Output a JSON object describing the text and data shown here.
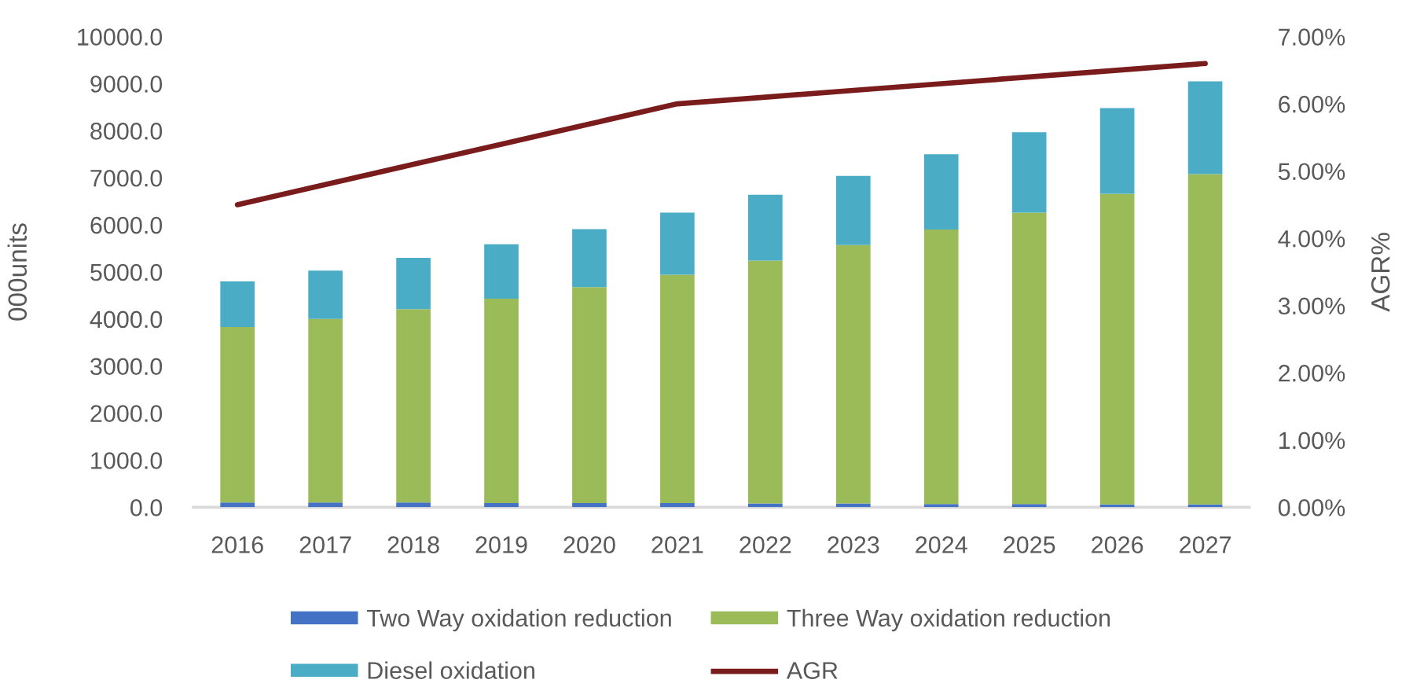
{
  "chart_data": {
    "type": "bar",
    "stacked": true,
    "categories": [
      "2016",
      "2017",
      "2018",
      "2019",
      "2020",
      "2021",
      "2022",
      "2023",
      "2024",
      "2025",
      "2026",
      "2027"
    ],
    "series": [
      {
        "name": "Two Way oxidation reduction",
        "color": "#4472c4",
        "values": [
          100,
          100,
          100,
          90,
          90,
          90,
          80,
          80,
          70,
          70,
          60,
          60
        ]
      },
      {
        "name": "Three Way oxidation reduction",
        "color": "#9bbb59",
        "values": [
          3730,
          3900,
          4110,
          4340,
          4590,
          4850,
          5160,
          5490,
          5830,
          6190,
          6600,
          7020
        ]
      },
      {
        "name": "Diesel oxidation",
        "color": "#4bacc6",
        "values": [
          970,
          1030,
          1090,
          1160,
          1230,
          1320,
          1400,
          1470,
          1600,
          1710,
          1820,
          1970
        ]
      },
      {
        "name": "AGR",
        "type": "line",
        "axis": "y2",
        "color": "#7b1c1c",
        "values": [
          4.5,
          4.8,
          5.1,
          5.4,
          5.7,
          6.0,
          6.1,
          6.2,
          6.3,
          6.4,
          6.5,
          6.6
        ]
      }
    ],
    "ylabel": "000units",
    "y2label": "AGR%",
    "ylim": [
      0,
      10000
    ],
    "yticks": [
      {
        "value": 0,
        "label": "0.0"
      },
      {
        "value": 1000,
        "label": "1000.0"
      },
      {
        "value": 2000,
        "label": "2000.0"
      },
      {
        "value": 3000,
        "label": "3000.0"
      },
      {
        "value": 4000,
        "label": "4000.0"
      },
      {
        "value": 5000,
        "label": "5000.0"
      },
      {
        "value": 6000,
        "label": "6000.0"
      },
      {
        "value": 7000,
        "label": "7000.0"
      },
      {
        "value": 8000,
        "label": "8000.0"
      },
      {
        "value": 9000,
        "label": "9000.0"
      },
      {
        "value": 10000,
        "label": "10000.0"
      }
    ],
    "y2lim": [
      0,
      7
    ],
    "y2ticks": [
      {
        "value": 0,
        "label": "0.00%"
      },
      {
        "value": 1,
        "label": "1.00%"
      },
      {
        "value": 2,
        "label": "2.00%"
      },
      {
        "value": 3,
        "label": "3.00%"
      },
      {
        "value": 4,
        "label": "4.00%"
      },
      {
        "value": 5,
        "label": "5.00%"
      },
      {
        "value": 6,
        "label": "6.00%"
      },
      {
        "value": 7,
        "label": "7.00%"
      }
    ],
    "legend": "bottom"
  }
}
